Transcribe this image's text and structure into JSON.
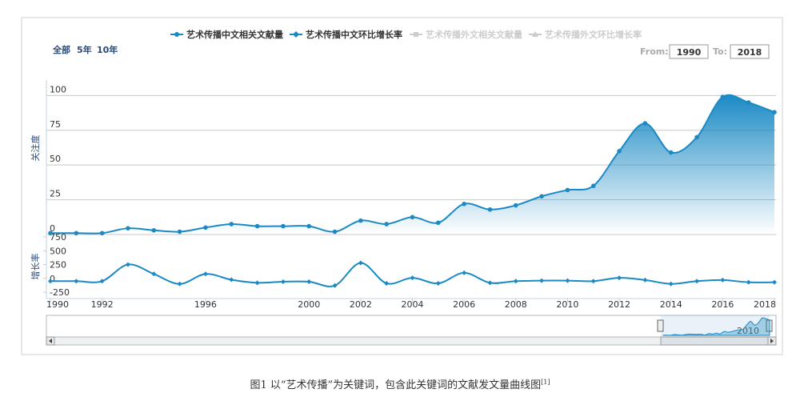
{
  "chart_data": {
    "type": "line",
    "range_buttons": [
      "全部",
      "5年",
      "10年"
    ],
    "from_label": "From:",
    "from_value": "1990",
    "to_label": "To:",
    "to_value": "2018",
    "y_title": "关注度",
    "y2_title": "增长率",
    "categories": [
      "1990",
      null,
      "1992",
      null,
      null,
      null,
      "1996",
      null,
      null,
      null,
      "2000",
      null,
      "2002",
      null,
      "2004",
      null,
      "2006",
      null,
      "2008",
      null,
      "2010",
      null,
      "2012",
      null,
      "2014",
      null,
      "2016",
      null,
      "2018"
    ],
    "series": [
      {
        "name": "艺术传播中文相关文献量",
        "color": "#1b8ac4",
        "marker": "circle",
        "visible": true,
        "area": true,
        "values": [
          1,
          1,
          1,
          4.5,
          3,
          2,
          5,
          7.5,
          6,
          6,
          6,
          2,
          10,
          7.5,
          12.5,
          8.5,
          22,
          18,
          21,
          27.5,
          32,
          35,
          60,
          80,
          59,
          70,
          99,
          95,
          88
        ]
      },
      {
        "name": "艺术传播中文环比增长率",
        "color": "#1b8ac4",
        "marker": "diamond",
        "visible": true,
        "axis": "y2",
        "values": [
          -50,
          -50,
          -50,
          250,
          80,
          -100,
          80,
          -25,
          -80,
          -60,
          -60,
          -130,
          280,
          -90,
          10,
          -90,
          100,
          -80,
          -50,
          -40,
          -40,
          -50,
          10,
          -30,
          -100,
          -50,
          -30,
          -70,
          -70
        ]
      },
      {
        "name": "艺术传播外文相关文献量",
        "color": "#cccccc",
        "marker": "square",
        "visible": false
      },
      {
        "name": "艺术传播外文环比增长率",
        "color": "#cccccc",
        "marker": "triangle",
        "visible": false
      }
    ],
    "ylim": [
      0,
      110
    ],
    "yticks": [
      0,
      25,
      50,
      75,
      100
    ],
    "y2lim": [
      -350,
      750
    ],
    "y2ticks": [
      -250,
      0,
      250,
      500,
      750
    ],
    "grid": true,
    "navigator_label": "2010",
    "caption": "图1  以“艺术传播”为关键词，包含此关键词的文献发文量曲线图",
    "caption_ref": "[1]"
  }
}
